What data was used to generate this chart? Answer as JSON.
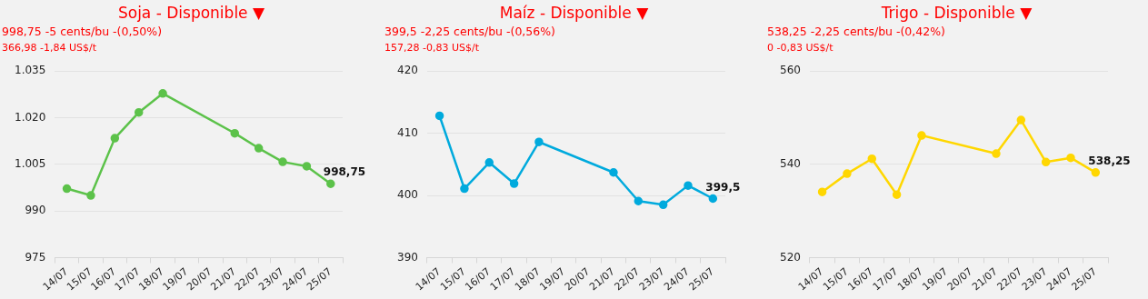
{
  "chart_data": [
    {
      "type": "line",
      "title": "Soja - Disponible ▼",
      "subtitle": "998,75 -5 cents/bu -(0,50%)",
      "annotations": [
        "366,98 -1,84 US$/t"
      ],
      "categories": [
        "14/07",
        "15/07",
        "16/07",
        "17/07",
        "18/07",
        "19/07",
        "20/07",
        "21/07",
        "22/07",
        "23/07",
        "24/07",
        "25/07"
      ],
      "series": [
        {
          "color": "#5cc24a",
          "values": [
            997.2,
            995.0,
            1013.4,
            1021.7,
            1027.8,
            null,
            null,
            1015.0,
            1010.2,
            1005.8,
            1004.4,
            998.75
          ],
          "value_labels": [
            null,
            null,
            null,
            null,
            null,
            null,
            null,
            null,
            null,
            null,
            null,
            "998,75"
          ]
        }
      ],
      "ylim": [
        975,
        1035
      ],
      "yticks": [
        975,
        990,
        {
          "value": 1005,
          "label": "1.005"
        },
        {
          "value": 1020,
          "label": "1.020"
        },
        {
          "value": 1035,
          "label": "1.035"
        }
      ],
      "grid": "y",
      "legend": false,
      "marker": "circle",
      "line_style": "solid"
    },
    {
      "type": "line",
      "title": "Maíz - Disponible ▼",
      "subtitle": "399,5 -2,25 cents/bu -(0,56%)",
      "annotations": [
        "157,28 -0,83 US$/t"
      ],
      "categories": [
        "14/07",
        "15/07",
        "16/07",
        "17/07",
        "18/07",
        "19/07",
        "20/07",
        "21/07",
        "22/07",
        "23/07",
        "24/07",
        "25/07"
      ],
      "series": [
        {
          "color": "#00aadd",
          "values": [
            412.8,
            401.1,
            405.3,
            401.9,
            408.6,
            null,
            null,
            403.7,
            399.1,
            398.5,
            401.6,
            399.5
          ],
          "value_labels": [
            null,
            null,
            null,
            null,
            null,
            null,
            null,
            null,
            null,
            null,
            null,
            "399,5"
          ]
        }
      ],
      "ylim": [
        390,
        420
      ],
      "yticks": [
        390,
        400,
        410,
        420
      ],
      "grid": "y",
      "legend": false,
      "marker": "circle",
      "line_style": "solid"
    },
    {
      "type": "line",
      "title": "Trigo - Disponible ▼",
      "subtitle": "538,25 -2,25 cents/bu -(0,42%)",
      "annotations": [
        "0 -0,83 US$/t"
      ],
      "categories": [
        "14/07",
        "15/07",
        "16/07",
        "17/07",
        "18/07",
        "19/07",
        "20/07",
        "21/07",
        "22/07",
        "23/07",
        "24/07",
        "25/07"
      ],
      "series": [
        {
          "color": "#ffd700",
          "values": [
            534.1,
            538.0,
            541.2,
            533.5,
            546.2,
            null,
            null,
            542.3,
            549.5,
            540.5,
            541.4,
            538.25
          ],
          "value_labels": [
            null,
            null,
            null,
            null,
            null,
            null,
            null,
            null,
            null,
            null,
            null,
            "538,25"
          ]
        }
      ],
      "ylim": [
        520,
        560
      ],
      "yticks": [
        520,
        540,
        560
      ],
      "grid": "y",
      "legend": false,
      "marker": "circle",
      "line_style": "solid"
    }
  ]
}
